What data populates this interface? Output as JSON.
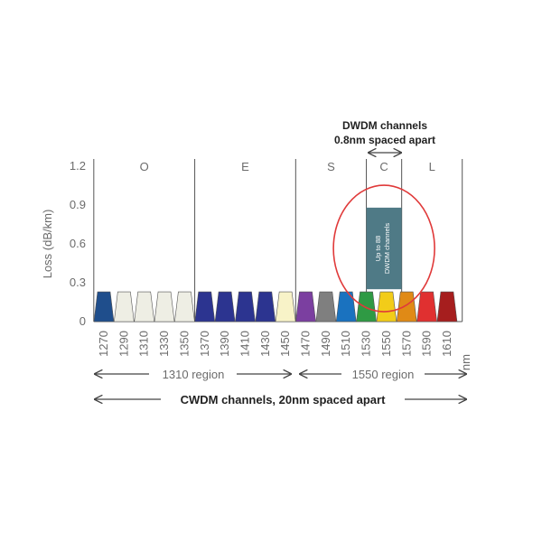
{
  "chart_data": {
    "type": "bar",
    "ylabel": "Loss (dB/km)",
    "yticks": [
      "0",
      "0.3",
      "0.6",
      "0.9",
      "1.2"
    ],
    "ylim": [
      0,
      1.2
    ],
    "unit_label": "nm",
    "channels": [
      {
        "wavelength": "1270",
        "value": 0.23,
        "color": "#1f4e8c"
      },
      {
        "wavelength": "1290",
        "value": 0.23,
        "color": "#eeeee4"
      },
      {
        "wavelength": "1310",
        "value": 0.23,
        "color": "#eeeee4"
      },
      {
        "wavelength": "1330",
        "value": 0.23,
        "color": "#eeeee4"
      },
      {
        "wavelength": "1350",
        "value": 0.23,
        "color": "#eeeee4"
      },
      {
        "wavelength": "1370",
        "value": 0.23,
        "color": "#2c3490"
      },
      {
        "wavelength": "1390",
        "value": 0.23,
        "color": "#2c3490"
      },
      {
        "wavelength": "1410",
        "value": 0.23,
        "color": "#2c3490"
      },
      {
        "wavelength": "1430",
        "value": 0.23,
        "color": "#2c3490"
      },
      {
        "wavelength": "1450",
        "value": 0.23,
        "color": "#f8f3c8"
      },
      {
        "wavelength": "1470",
        "value": 0.23,
        "color": "#7b3fa0"
      },
      {
        "wavelength": "1490",
        "value": 0.23,
        "color": "#7f7f7f"
      },
      {
        "wavelength": "1510",
        "value": 0.23,
        "color": "#1a72bf"
      },
      {
        "wavelength": "1530",
        "value": 0.23,
        "color": "#2f9a44"
      },
      {
        "wavelength": "1550",
        "value": 0.23,
        "color": "#f2cc19"
      },
      {
        "wavelength": "1570",
        "value": 0.23,
        "color": "#e08a16"
      },
      {
        "wavelength": "1590",
        "value": 0.23,
        "color": "#e03030"
      },
      {
        "wavelength": "1610",
        "value": 0.23,
        "color": "#a61e1e"
      }
    ],
    "bands": [
      {
        "label": "O",
        "from": "1260",
        "to": "1360"
      },
      {
        "label": "E",
        "from": "1360",
        "to": "1460"
      },
      {
        "label": "S",
        "from": "1460",
        "to": "1530"
      },
      {
        "label": "C",
        "from": "1530",
        "to": "1565"
      },
      {
        "label": "L",
        "from": "1565",
        "to": "1625"
      }
    ],
    "dwdm_bar": {
      "value": 0.88,
      "label_line1": "Up to 88",
      "label_line2": "DWDM channels",
      "color": "#4f7a86"
    },
    "dwdm_annotation": {
      "line1": "DWDM channels",
      "line2": "0.8nm spaced apart"
    },
    "regions": [
      {
        "label": "1310 region"
      },
      {
        "label": "1550 region"
      }
    ],
    "cwdm_label": "CWDM channels, 20nm spaced apart",
    "highlight_color": "#e03a3a"
  }
}
